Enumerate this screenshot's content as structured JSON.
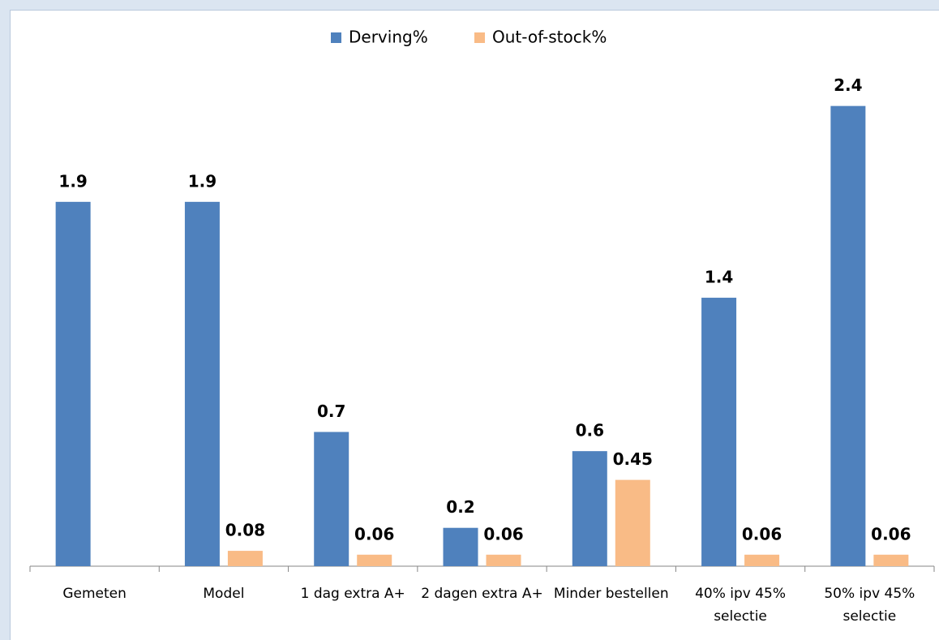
{
  "chart_data": {
    "type": "bar",
    "categories": [
      "Gemeten",
      "Model",
      "1 dag extra A+",
      "2 dagen extra A+",
      "Minder bestellen",
      "40% ipv 45% selectie",
      "50% ipv 45% selectie"
    ],
    "series": [
      {
        "name": "Derving%",
        "color": "#4f81bd",
        "values": [
          1.9,
          1.9,
          0.7,
          0.2,
          0.6,
          1.4,
          2.4
        ]
      },
      {
        "name": "Out-of-stock%",
        "color": "#f9bb86",
        "values": [
          null,
          0.08,
          0.06,
          0.06,
          0.45,
          0.06,
          0.06
        ]
      }
    ],
    "ylim": [
      0,
      2.5
    ],
    "legend": "top",
    "grid": false
  }
}
